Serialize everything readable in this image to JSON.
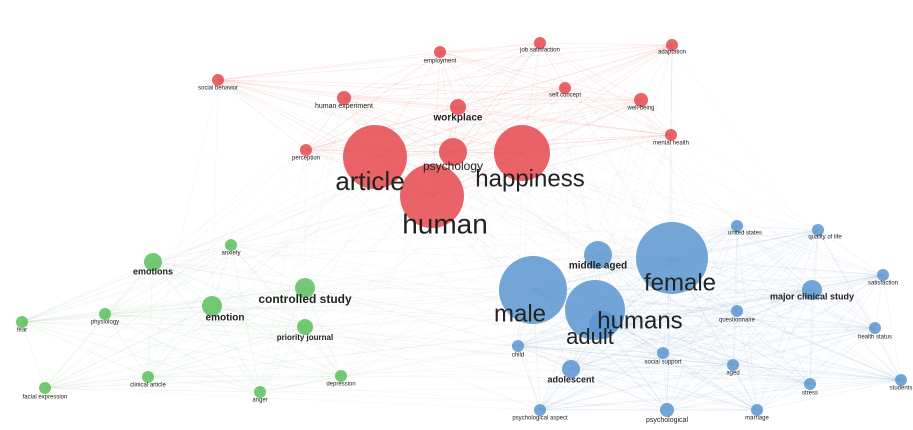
{
  "nodes": [
    {
      "label": "job satisfaction"
    },
    {
      "label": "adaptation"
    },
    {
      "label": "employment"
    },
    {
      "label": "social behavior"
    },
    {
      "label": "human experiment"
    },
    {
      "label": "self concept"
    },
    {
      "label": "well-being"
    },
    {
      "label": "workplace"
    },
    {
      "label": "perception"
    },
    {
      "label": "mental health"
    },
    {
      "label": "psychology"
    },
    {
      "label": "article"
    },
    {
      "label": "happiness"
    },
    {
      "label": "human"
    },
    {
      "label": "emotions"
    },
    {
      "label": "anxiety"
    },
    {
      "label": "controlled study"
    },
    {
      "label": "emotion"
    },
    {
      "label": "priority journal"
    },
    {
      "label": "fear"
    },
    {
      "label": "physiology"
    },
    {
      "label": "clinical article"
    },
    {
      "label": "facial expression"
    },
    {
      "label": "depression"
    },
    {
      "label": "anger"
    },
    {
      "label": "united states"
    },
    {
      "label": "quality of life"
    },
    {
      "label": "female"
    },
    {
      "label": "middle aged"
    },
    {
      "label": "male"
    },
    {
      "label": "humans"
    },
    {
      "label": "adult"
    },
    {
      "label": "major clinical study"
    },
    {
      "label": "satisfaction"
    },
    {
      "label": "questionnaire"
    },
    {
      "label": "health status"
    },
    {
      "label": "child"
    },
    {
      "label": "social support"
    },
    {
      "label": "aged"
    },
    {
      "label": "adolescent"
    },
    {
      "label": "stress"
    },
    {
      "label": "students"
    },
    {
      "label": "psychological aspect"
    },
    {
      "label": "psychological"
    },
    {
      "label": "marriage"
    }
  ]
}
